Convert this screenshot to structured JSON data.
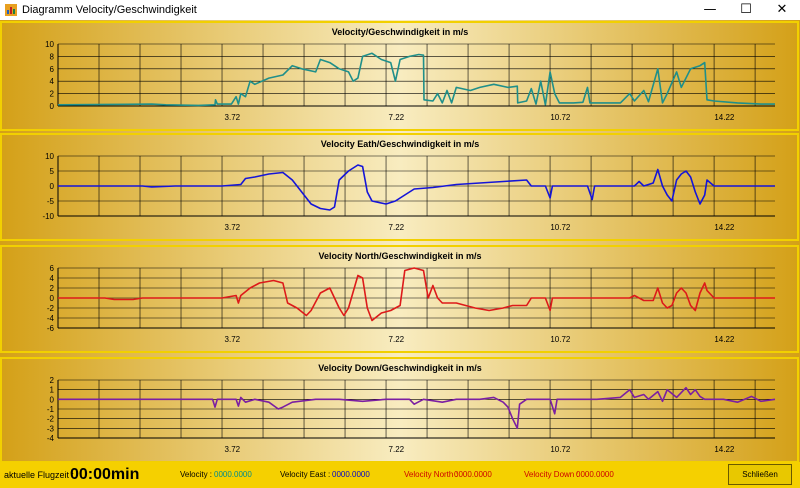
{
  "window": {
    "title": "Diagramm Velocity/Geschwindigkeit",
    "minimize_glyph": "—",
    "maximize_glyph": "☐",
    "close_glyph": "✕",
    "icon": "app-chart-icon"
  },
  "footer": {
    "flight_time_label": "aktuelle Flugzeit :",
    "flight_time_value": "00:00min",
    "velocity_label": "Velocity :",
    "velocity_value": "0000.0000",
    "velocity_east_label": "Velocity  East :",
    "velocity_east_value": "0000.0000",
    "velocity_north_label": "Velocity North :",
    "velocity_north_value": "0000.0000",
    "velocity_down_label": "Velocity Down :",
    "velocity_down_value": "0000.0000",
    "close_button": "Schließen",
    "colors": {
      "velocity": "#008b8b",
      "east": "#0000cc",
      "north": "#cc0000",
      "down": "#cc0000",
      "button": "#e8c800",
      "background": "#f5d000"
    }
  },
  "chart_data": [
    {
      "type": "line",
      "title": "Velocity/Geschwindigkeit  in m/s",
      "color": "#1f8f8a",
      "ylim": [
        0,
        10
      ],
      "yticks": [
        0,
        2,
        4,
        6,
        8,
        10
      ],
      "xlim": [
        0,
        15.3
      ],
      "xticks": [
        3.72,
        7.22,
        10.72,
        14.22
      ],
      "xtick_labels": [
        "3.72",
        "7.22",
        "10.72",
        "14.22"
      ],
      "grid": true,
      "points": [
        [
          0,
          0.2
        ],
        [
          2.0,
          0.3
        ],
        [
          2.3,
          0.2
        ],
        [
          3.0,
          0.1
        ],
        [
          3.35,
          0.2
        ],
        [
          3.36,
          1.0
        ],
        [
          3.4,
          0.3
        ],
        [
          3.7,
          0.3
        ],
        [
          3.8,
          1.5
        ],
        [
          3.85,
          0.3
        ],
        [
          3.9,
          2.0
        ],
        [
          4.0,
          1.5
        ],
        [
          4.1,
          4.0
        ],
        [
          4.2,
          3.5
        ],
        [
          4.5,
          4.5
        ],
        [
          4.8,
          5.0
        ],
        [
          5.0,
          6.5
        ],
        [
          5.2,
          6.0
        ],
        [
          5.5,
          5.5
        ],
        [
          5.6,
          7.5
        ],
        [
          5.8,
          7.0
        ],
        [
          6.0,
          6.0
        ],
        [
          6.2,
          5.5
        ],
        [
          6.3,
          4.0
        ],
        [
          6.4,
          4.5
        ],
        [
          6.5,
          8.0
        ],
        [
          6.7,
          8.5
        ],
        [
          6.9,
          7.5
        ],
        [
          7.1,
          7.0
        ],
        [
          7.2,
          4.0
        ],
        [
          7.3,
          7.5
        ],
        [
          7.5,
          8.0
        ],
        [
          7.7,
          8.3
        ],
        [
          7.8,
          8.2
        ],
        [
          7.81,
          1.0
        ],
        [
          8.0,
          0.8
        ],
        [
          8.1,
          2.0
        ],
        [
          8.2,
          0.5
        ],
        [
          8.3,
          2.5
        ],
        [
          8.4,
          0.5
        ],
        [
          8.5,
          3.0
        ],
        [
          8.8,
          2.5
        ],
        [
          9.0,
          3.0
        ],
        [
          9.3,
          3.5
        ],
        [
          9.6,
          3.0
        ],
        [
          9.8,
          3.2
        ],
        [
          9.81,
          0.5
        ],
        [
          10.0,
          0.8
        ],
        [
          10.1,
          2.8
        ],
        [
          10.2,
          0.3
        ],
        [
          10.3,
          4.0
        ],
        [
          10.4,
          0.2
        ],
        [
          10.5,
          5.5
        ],
        [
          10.6,
          2.0
        ],
        [
          10.7,
          0.5
        ],
        [
          11.0,
          0.5
        ],
        [
          11.2,
          0.6
        ],
        [
          11.3,
          3.0
        ],
        [
          11.35,
          0.5
        ],
        [
          11.5,
          0.5
        ],
        [
          11.8,
          0.5
        ],
        [
          12.0,
          0.5
        ],
        [
          12.2,
          2.0
        ],
        [
          12.3,
          0.8
        ],
        [
          12.5,
          2.5
        ],
        [
          12.6,
          0.7
        ],
        [
          12.8,
          6.0
        ],
        [
          12.9,
          0.5
        ],
        [
          13.0,
          2.0
        ],
        [
          13.2,
          5.5
        ],
        [
          13.3,
          3.0
        ],
        [
          13.5,
          6.0
        ],
        [
          13.7,
          6.5
        ],
        [
          13.8,
          7.0
        ],
        [
          13.85,
          1.0
        ],
        [
          14.0,
          0.8
        ],
        [
          14.5,
          0.5
        ],
        [
          15.0,
          0.3
        ],
        [
          15.3,
          0.3
        ]
      ]
    },
    {
      "type": "line",
      "title": "Velocity Eath/Geschwindigkeit  in m/s",
      "color": "#1515d8",
      "ylim": [
        -10,
        10
      ],
      "yticks": [
        -10,
        -5,
        0,
        5,
        10
      ],
      "xlim": [
        0,
        15.3
      ],
      "xticks": [
        3.72,
        7.22,
        10.72,
        14.22
      ],
      "xtick_labels": [
        "3.72",
        "7.22",
        "10.72",
        "14.22"
      ],
      "grid": true,
      "points": [
        [
          0,
          0
        ],
        [
          1.8,
          0
        ],
        [
          2.0,
          -0.3
        ],
        [
          2.5,
          0
        ],
        [
          3.5,
          0
        ],
        [
          3.9,
          0.5
        ],
        [
          4.0,
          2.5
        ],
        [
          4.2,
          3.0
        ],
        [
          4.5,
          4.0
        ],
        [
          4.8,
          4.5
        ],
        [
          5.0,
          2.0
        ],
        [
          5.2,
          -2.0
        ],
        [
          5.4,
          -6.0
        ],
        [
          5.6,
          -7.5
        ],
        [
          5.8,
          -8.0
        ],
        [
          5.9,
          -7.0
        ],
        [
          6.0,
          2.0
        ],
        [
          6.2,
          5.0
        ],
        [
          6.4,
          7.0
        ],
        [
          6.5,
          6.5
        ],
        [
          6.6,
          -2.0
        ],
        [
          6.7,
          -5.0
        ],
        [
          7.0,
          -6.0
        ],
        [
          7.2,
          -5.0
        ],
        [
          7.4,
          -3.0
        ],
        [
          7.6,
          -1.0
        ],
        [
          8.0,
          -0.5
        ],
        [
          8.5,
          0.5
        ],
        [
          9.0,
          1.0
        ],
        [
          9.5,
          1.5
        ],
        [
          10.0,
          2.0
        ],
        [
          10.1,
          0
        ],
        [
          10.4,
          0
        ],
        [
          10.5,
          -4.0
        ],
        [
          10.55,
          0
        ],
        [
          11.0,
          0
        ],
        [
          11.3,
          0
        ],
        [
          11.4,
          -4.5
        ],
        [
          11.45,
          0
        ],
        [
          12.0,
          0
        ],
        [
          12.3,
          0
        ],
        [
          12.4,
          1.5
        ],
        [
          12.5,
          0
        ],
        [
          12.7,
          1.0
        ],
        [
          12.8,
          5.5
        ],
        [
          12.9,
          0
        ],
        [
          13.0,
          -3.0
        ],
        [
          13.1,
          -5.0
        ],
        [
          13.2,
          2.0
        ],
        [
          13.3,
          4.0
        ],
        [
          13.4,
          5.0
        ],
        [
          13.5,
          3.0
        ],
        [
          13.6,
          -2.0
        ],
        [
          13.7,
          -6.0
        ],
        [
          13.8,
          -3.0
        ],
        [
          13.85,
          2.0
        ],
        [
          14.0,
          0
        ],
        [
          15.3,
          0
        ]
      ]
    },
    {
      "type": "line",
      "title": "Velocity North/Geschwindigkeit  in m/s",
      "color": "#dd1a1a",
      "ylim": [
        -6,
        6
      ],
      "yticks": [
        -6,
        -4,
        -2,
        0,
        2,
        4,
        6
      ],
      "xlim": [
        0,
        15.3
      ],
      "xticks": [
        3.72,
        7.22,
        10.72,
        14.22
      ],
      "xtick_labels": [
        "3.72",
        "7.22",
        "10.72",
        "14.22"
      ],
      "grid": true,
      "points": [
        [
          0,
          0
        ],
        [
          1.0,
          0
        ],
        [
          1.2,
          -0.3
        ],
        [
          1.6,
          -0.3
        ],
        [
          1.8,
          0
        ],
        [
          3.5,
          0
        ],
        [
          3.8,
          0.5
        ],
        [
          3.85,
          -1.0
        ],
        [
          3.9,
          0.5
        ],
        [
          4.1,
          2.0
        ],
        [
          4.3,
          3.0
        ],
        [
          4.6,
          3.5
        ],
        [
          4.8,
          3.0
        ],
        [
          4.9,
          -1.0
        ],
        [
          5.1,
          -2.0
        ],
        [
          5.3,
          -3.5
        ],
        [
          5.4,
          -2.5
        ],
        [
          5.6,
          1.0
        ],
        [
          5.8,
          2.0
        ],
        [
          6.0,
          -2.0
        ],
        [
          6.1,
          -3.5
        ],
        [
          6.2,
          -2.0
        ],
        [
          6.4,
          4.5
        ],
        [
          6.5,
          4.0
        ],
        [
          6.6,
          -2.0
        ],
        [
          6.7,
          -4.5
        ],
        [
          6.9,
          -3.0
        ],
        [
          7.1,
          -2.5
        ],
        [
          7.3,
          -1.5
        ],
        [
          7.4,
          5.5
        ],
        [
          7.6,
          6.0
        ],
        [
          7.8,
          5.5
        ],
        [
          7.9,
          0
        ],
        [
          8.0,
          2.5
        ],
        [
          8.1,
          0
        ],
        [
          8.2,
          -1.0
        ],
        [
          8.5,
          -1.0
        ],
        [
          8.7,
          -1.5
        ],
        [
          8.9,
          -2.0
        ],
        [
          9.2,
          -2.5
        ],
        [
          9.5,
          -2.0
        ],
        [
          9.7,
          -1.5
        ],
        [
          10.0,
          -1.5
        ],
        [
          10.1,
          0
        ],
        [
          10.4,
          0
        ],
        [
          10.5,
          -2.5
        ],
        [
          10.55,
          0
        ],
        [
          11.5,
          0
        ],
        [
          12.2,
          0
        ],
        [
          12.3,
          0.5
        ],
        [
          12.5,
          -0.5
        ],
        [
          12.7,
          -0.5
        ],
        [
          12.8,
          2.0
        ],
        [
          12.9,
          -1.0
        ],
        [
          13.0,
          -2.0
        ],
        [
          13.1,
          -1.5
        ],
        [
          13.2,
          1.0
        ],
        [
          13.3,
          2.0
        ],
        [
          13.4,
          1.0
        ],
        [
          13.5,
          -1.5
        ],
        [
          13.6,
          -2.5
        ],
        [
          13.7,
          1.0
        ],
        [
          13.8,
          3.0
        ],
        [
          13.85,
          1.5
        ],
        [
          14.0,
          0
        ],
        [
          15.3,
          0
        ]
      ]
    },
    {
      "type": "line",
      "title": "Velocity Down/Geschwindigkeit  in m/s",
      "color": "#7b1fa2",
      "ylim": [
        -4,
        2
      ],
      "yticks": [
        -4,
        -3,
        -2,
        -1,
        0,
        1,
        2
      ],
      "xlim": [
        0,
        15.3
      ],
      "xticks": [
        3.72,
        7.22,
        10.72,
        14.22
      ],
      "xtick_labels": [
        "3.72",
        "7.22",
        "10.72",
        "14.22"
      ],
      "grid": true,
      "points": [
        [
          0,
          0
        ],
        [
          3.3,
          0
        ],
        [
          3.35,
          -0.8
        ],
        [
          3.4,
          0
        ],
        [
          3.8,
          0
        ],
        [
          3.85,
          -0.7
        ],
        [
          3.9,
          0.2
        ],
        [
          4.0,
          -0.3
        ],
        [
          4.2,
          0
        ],
        [
          4.5,
          -0.3
        ],
        [
          4.7,
          -1.0
        ],
        [
          4.8,
          -0.8
        ],
        [
          5.0,
          -0.3
        ],
        [
          5.5,
          0
        ],
        [
          6.0,
          0
        ],
        [
          6.5,
          -0.2
        ],
        [
          7.0,
          0
        ],
        [
          7.5,
          0
        ],
        [
          7.6,
          -0.5
        ],
        [
          7.8,
          0
        ],
        [
          8.2,
          -0.3
        ],
        [
          8.5,
          0
        ],
        [
          9.0,
          0
        ],
        [
          9.3,
          0.2
        ],
        [
          9.5,
          -0.3
        ],
        [
          9.6,
          -0.8
        ],
        [
          9.7,
          -2.0
        ],
        [
          9.8,
          -3.0
        ],
        [
          9.85,
          -0.5
        ],
        [
          10.0,
          0
        ],
        [
          10.5,
          0
        ],
        [
          10.6,
          -1.5
        ],
        [
          10.65,
          0
        ],
        [
          11.0,
          0
        ],
        [
          11.5,
          0
        ],
        [
          12.0,
          0.2
        ],
        [
          12.2,
          1.0
        ],
        [
          12.3,
          0.2
        ],
        [
          12.5,
          0.5
        ],
        [
          12.6,
          0
        ],
        [
          12.8,
          0.8
        ],
        [
          12.9,
          -0.2
        ],
        [
          13.0,
          1.0
        ],
        [
          13.2,
          0.2
        ],
        [
          13.4,
          1.2
        ],
        [
          13.5,
          0.5
        ],
        [
          13.6,
          1.0
        ],
        [
          13.7,
          0.3
        ],
        [
          13.8,
          0
        ],
        [
          14.2,
          0
        ],
        [
          14.5,
          -0.3
        ],
        [
          14.8,
          0.3
        ],
        [
          15.0,
          -0.2
        ],
        [
          15.3,
          0
        ]
      ]
    }
  ]
}
